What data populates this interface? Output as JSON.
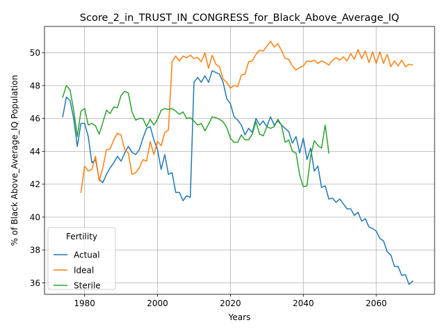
{
  "chart_data": {
    "type": "line",
    "title": "Score_2_in_TRUST_IN_CONGRESS_for_Black_Above_Average_IQ",
    "xlabel": "Years",
    "ylabel": "% of Black Above_Average_IQ Population",
    "xlim": [
      1969,
      2076
    ],
    "ylim": [
      35.3,
      51.6
    ],
    "xticks": [
      1980,
      2000,
      2020,
      2040,
      2060
    ],
    "yticks": [
      36,
      38,
      40,
      42,
      44,
      46,
      48,
      50
    ],
    "grid": true,
    "legend": {
      "title": "Fertility",
      "position": "lower-left"
    },
    "series": [
      {
        "name": "Actual",
        "color": "#1f77b4",
        "x": [
          1974,
          1975,
          1976,
          1977,
          1978,
          1979,
          1980,
          1981,
          1982,
          1983,
          1984,
          1985,
          1986,
          1987,
          1988,
          1989,
          1990,
          1991,
          1992,
          1993,
          1994,
          1995,
          1996,
          1997,
          1998,
          1999,
          2000,
          2001,
          2002,
          2003,
          2004,
          2005,
          2006,
          2007,
          2008,
          2009,
          2010,
          2011,
          2012,
          2013,
          2014,
          2015,
          2016,
          2017,
          2018,
          2019,
          2020,
          2021,
          2022,
          2023,
          2024,
          2025,
          2026,
          2027,
          2028,
          2029,
          2030,
          2031,
          2032,
          2033,
          2034,
          2035,
          2036,
          2037,
          2038,
          2039,
          2040,
          2041,
          2042,
          2043,
          2044,
          2045,
          2046,
          2047,
          2048,
          2049,
          2050,
          2051,
          2052,
          2053,
          2054,
          2055,
          2056,
          2057,
          2058,
          2059,
          2060,
          2061,
          2062,
          2063,
          2064,
          2065,
          2066,
          2067,
          2068,
          2069,
          2070
        ],
        "values": [
          46.1,
          47.3,
          47.1,
          46.0,
          44.3,
          45.7,
          45.7,
          44.9,
          43.3,
          43.5,
          42.3,
          42.1,
          42.6,
          43.0,
          43.3,
          43.7,
          43.4,
          43.9,
          44.3,
          43.95,
          43.8,
          44.1,
          44.8,
          45.4,
          45.5,
          44.7,
          44.1,
          42.9,
          43.8,
          42.6,
          42.7,
          41.5,
          41.5,
          41.0,
          41.3,
          41.2,
          48.2,
          48.5,
          48.2,
          48.6,
          48.2,
          48.9,
          48.8,
          48.7,
          48.2,
          47.2,
          46.9,
          46.1,
          45.9,
          45.6,
          45.0,
          45.4,
          45.15,
          46.0,
          45.6,
          45.85,
          45.5,
          46.1,
          45.6,
          45.85,
          45.6,
          45.4,
          45.2,
          44.5,
          44.9,
          43.9,
          44.8,
          43.5,
          44.2,
          42.8,
          43.1,
          41.8,
          41.9,
          41.1,
          41.15,
          40.9,
          41.1,
          40.8,
          40.5,
          40.5,
          40.1,
          40.3,
          39.75,
          39.9,
          39.4,
          39.3,
          39.15,
          38.7,
          38.55,
          37.9,
          37.7,
          37.0,
          37.0,
          36.45,
          36.5,
          35.9,
          36.1
        ]
      },
      {
        "name": "Ideal",
        "color": "#ff7f0e",
        "x": [
          1979,
          1980,
          1981,
          1982,
          1983,
          1984,
          1985,
          1986,
          1987,
          1988,
          1989,
          1990,
          1991,
          1992,
          1993,
          1994,
          1995,
          1996,
          1997,
          1998,
          1999,
          2000,
          2001,
          2002,
          2003,
          2004,
          2005,
          2006,
          2007,
          2008,
          2009,
          2010,
          2011,
          2012,
          2013,
          2014,
          2015,
          2016,
          2017,
          2018,
          2019,
          2020,
          2021,
          2022,
          2023,
          2024,
          2025,
          2026,
          2027,
          2028,
          2029,
          2030,
          2031,
          2032,
          2033,
          2034,
          2035,
          2036,
          2037,
          2038,
          2039,
          2040,
          2041,
          2042,
          2043,
          2044,
          2045,
          2046,
          2047,
          2048,
          2049,
          2050,
          2051,
          2052,
          2053,
          2054,
          2055,
          2056,
          2057,
          2058,
          2059,
          2060,
          2061,
          2062,
          2063,
          2064,
          2065,
          2066,
          2067,
          2068,
          2069,
          2070
        ],
        "values": [
          41.5,
          43.1,
          42.8,
          42.9,
          43.7,
          42.2,
          43.0,
          44.1,
          44.15,
          44.7,
          45.1,
          45.0,
          44.1,
          43.9,
          42.6,
          42.7,
          43.0,
          43.5,
          43.4,
          44.6,
          43.8,
          44.6,
          44.35,
          45.15,
          45.3,
          49.45,
          49.8,
          49.5,
          49.8,
          49.7,
          49.85,
          49.65,
          49.7,
          49.45,
          50.0,
          49.05,
          49.85,
          49.3,
          49.15,
          48.4,
          48.2,
          47.85,
          48.0,
          47.95,
          48.65,
          48.7,
          49.45,
          49.5,
          49.9,
          50.15,
          50.1,
          50.4,
          50.7,
          50.35,
          50.55,
          50.15,
          49.65,
          49.6,
          49.2,
          48.95,
          49.1,
          49.2,
          49.5,
          49.45,
          49.55,
          49.35,
          49.5,
          49.4,
          49.25,
          49.55,
          49.7,
          49.55,
          49.75,
          49.5,
          49.95,
          49.6,
          50.2,
          49.65,
          50.1,
          49.4,
          50.05,
          49.35,
          50.05,
          49.35,
          49.9,
          49.15,
          49.5,
          49.2,
          49.55,
          49.15,
          49.3,
          49.25
        ]
      },
      {
        "name": "Sterile",
        "color": "#2ca02c",
        "x": [
          1974,
          1975,
          1976,
          1977,
          1978,
          1979,
          1980,
          1981,
          1982,
          1983,
          1984,
          1985,
          1986,
          1987,
          1988,
          1989,
          1990,
          1991,
          1992,
          1993,
          1994,
          1995,
          1996,
          1997,
          1998,
          1999,
          2000,
          2001,
          2002,
          2003,
          2004,
          2005,
          2006,
          2007,
          2008,
          2009,
          2010,
          2011,
          2012,
          2013,
          2014,
          2015,
          2016,
          2017,
          2018,
          2019,
          2020,
          2021,
          2022,
          2023,
          2024,
          2025,
          2026,
          2027,
          2028,
          2029,
          2030,
          2031,
          2032,
          2033,
          2034,
          2035,
          2036,
          2037,
          2038,
          2039,
          2040,
          2041,
          2042,
          2043,
          2044,
          2045,
          2046,
          2047
        ],
        "values": [
          47.3,
          48.0,
          47.75,
          46.5,
          44.9,
          46.45,
          46.6,
          45.6,
          45.7,
          45.55,
          45.05,
          45.75,
          46.5,
          46.3,
          46.7,
          46.65,
          47.4,
          47.65,
          47.55,
          46.4,
          45.9,
          46.0,
          46.0,
          45.5,
          45.95,
          45.6,
          45.95,
          46.5,
          46.6,
          46.55,
          46.6,
          46.45,
          46.25,
          46.4,
          46.0,
          46.05,
          45.85,
          45.6,
          45.7,
          45.25,
          45.65,
          46.1,
          46.05,
          45.95,
          45.8,
          45.45,
          44.8,
          44.55,
          44.55,
          45.0,
          44.7,
          44.7,
          45.05,
          45.8,
          45.05,
          44.95,
          45.5,
          45.4,
          45.5,
          45.95,
          45.6,
          44.55,
          44.7,
          44.0,
          43.9,
          42.55,
          41.85,
          41.9,
          43.7,
          44.65,
          44.35,
          44.2,
          45.6,
          43.9
        ]
      }
    ]
  }
}
